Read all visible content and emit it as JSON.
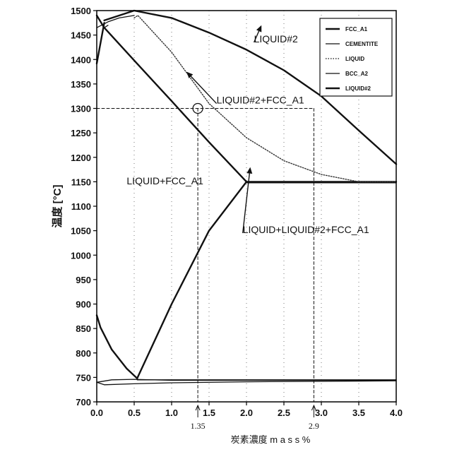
{
  "chart_data": {
    "type": "line",
    "title": "",
    "xlabel": "炭素濃度 m a s s %",
    "ylabel": "温度 [°C]",
    "xlim": [
      0.0,
      4.0
    ],
    "ylim": [
      700,
      1500
    ],
    "xticks": [
      "0.0",
      "0.5",
      "1.0",
      "1.5",
      "2.0",
      "2.5",
      "3.0",
      "3.5",
      "4.0"
    ],
    "yticks": [
      "700",
      "750",
      "800",
      "850",
      "900",
      "950",
      "1000",
      "1050",
      "1100",
      "1150",
      "1200",
      "1250",
      "1300",
      "1350",
      "1400",
      "1450",
      "1500"
    ],
    "grid": "dotted vertical lines at x ticks",
    "legend_position": "top-right",
    "series": [
      {
        "name": "FCC_A1",
        "style": "thick solid",
        "points": [
          [
            0.0,
            1490
          ],
          [
            0.1,
            1465
          ],
          [
            0.53,
            1393
          ],
          [
            1.0,
            1315
          ],
          [
            1.5,
            1231
          ],
          [
            2.0,
            1150
          ],
          [
            2.05,
            1150
          ],
          [
            4.0,
            1150
          ]
        ]
      },
      {
        "name": "FCC_A1",
        "style": "thick solid",
        "points": [
          [
            0.54,
            748
          ],
          [
            1.0,
            900
          ],
          [
            1.5,
            1050
          ],
          [
            2.0,
            1150
          ]
        ]
      },
      {
        "name": "FCC_A1",
        "style": "thick solid",
        "points": [
          [
            0.0,
            877
          ],
          [
            0.05,
            852
          ],
          [
            0.2,
            807
          ],
          [
            0.4,
            768
          ],
          [
            0.54,
            748
          ]
        ]
      },
      {
        "name": "FCC_A1",
        "style": "thick solid",
        "points": [
          [
            0.0,
            1392
          ],
          [
            0.1,
            1475
          ]
        ]
      },
      {
        "name": "CEMENTITE",
        "style": "thin solid",
        "points": [
          [
            2.0,
            1148
          ],
          [
            4.0,
            1148
          ]
        ]
      },
      {
        "name": "CEMENTITE",
        "style": "thin solid",
        "points": [
          [
            0.54,
            745
          ],
          [
            4.0,
            745
          ]
        ]
      },
      {
        "name": "LIQUID",
        "style": "dotted",
        "points": [
          [
            0.5,
            1485
          ],
          [
            0.55,
            1490
          ],
          [
            1.0,
            1415
          ],
          [
            1.5,
            1310
          ],
          [
            2.0,
            1240
          ],
          [
            2.5,
            1193
          ],
          [
            3.0,
            1165
          ],
          [
            3.5,
            1150
          ],
          [
            4.0,
            1150
          ]
        ]
      },
      {
        "name": "BCC_A2",
        "style": "thin solid",
        "points": [
          [
            0.0,
            740
          ],
          [
            0.1,
            735
          ],
          [
            0.5,
            737
          ],
          [
            1.0,
            739
          ],
          [
            2.0,
            741
          ],
          [
            4.0,
            743
          ]
        ]
      },
      {
        "name": "BCC_A2",
        "style": "thin solid",
        "points": [
          [
            0.0,
            740
          ],
          [
            0.2,
            745
          ],
          [
            0.5,
            746
          ],
          [
            1.0,
            744
          ],
          [
            4.0,
            744
          ]
        ]
      },
      {
        "name": "LIQUID#2",
        "style": "thick solid",
        "points": [
          [
            0.1,
            1480
          ],
          [
            0.5,
            1500
          ],
          [
            1.0,
            1485
          ],
          [
            1.5,
            1455
          ],
          [
            2.0,
            1420
          ],
          [
            2.5,
            1378
          ],
          [
            3.0,
            1325
          ],
          [
            3.5,
            1255
          ],
          [
            4.0,
            1186
          ]
        ]
      },
      {
        "name": "LIQUID#2",
        "style": "thin solid",
        "points": [
          [
            0.0,
            1465
          ],
          [
            0.15,
            1477
          ],
          [
            0.3,
            1485
          ],
          [
            0.5,
            1490
          ]
        ]
      },
      {
        "name": "LIQUID#2",
        "style": "thin solid",
        "points": [
          [
            0.1,
            1465
          ],
          [
            0.15,
            1470
          ]
        ]
      },
      {
        "name": "",
        "style": "dashed guide",
        "points": [
          [
            0.0,
            1300
          ],
          [
            2.9,
            1300
          ]
        ]
      },
      {
        "name": "",
        "style": "dashed guide",
        "points": [
          [
            1.35,
            1300
          ],
          [
            1.35,
            700
          ]
        ]
      },
      {
        "name": "",
        "style": "dashed guide",
        "points": [
          [
            2.9,
            1300
          ],
          [
            2.9,
            700
          ]
        ]
      }
    ],
    "annotations": [
      {
        "text": "LIQUID#2",
        "x": 2.1,
        "y": 1435,
        "arrow_to": [
          2.2,
          1470
        ]
      },
      {
        "text": "LIQUID#2+FCC_A1",
        "x": 1.6,
        "y": 1310,
        "arrow_to": [
          1.2,
          1375
        ]
      },
      {
        "text": "LIQUID+FCC_A1",
        "x": 0.4,
        "y": 1145
      },
      {
        "text": "LIQUID+LIQUID#2+FCC_A1",
        "x": 1.95,
        "y": 1045,
        "arrow_to": [
          2.05,
          1180
        ]
      }
    ],
    "circle_marker": {
      "x": 1.35,
      "y": 1300
    },
    "x_markers": [
      {
        "label": "1.35",
        "value": 1.35
      },
      {
        "label": "2.9",
        "value": 2.9
      }
    ],
    "legend": [
      "FCC_A1",
      "CEMENTITE",
      "LIQUID",
      "BCC_A2",
      "LIQUID#2"
    ]
  }
}
